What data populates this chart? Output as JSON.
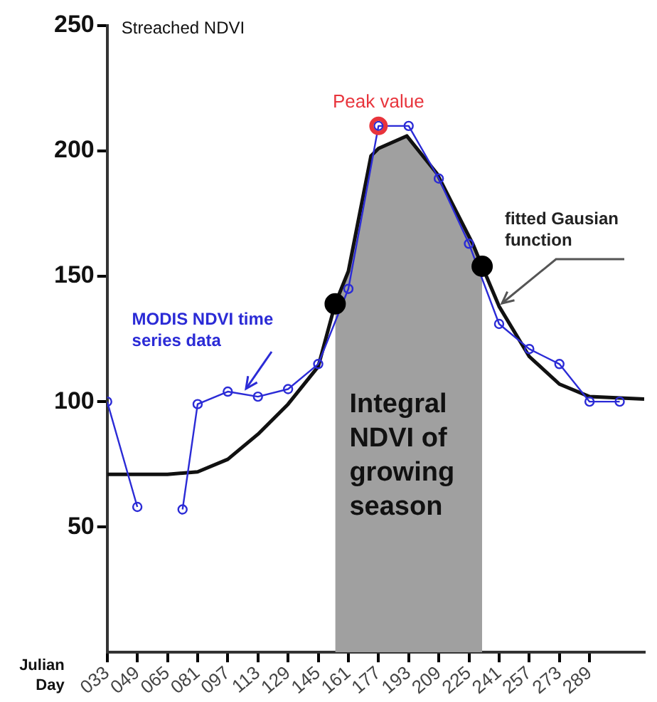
{
  "chart_data": {
    "type": "line",
    "ylabel": "Streached NDVI",
    "xlabel": "Julian Day",
    "xlim": [
      33,
      318
    ],
    "ylim": [
      0,
      250
    ],
    "xticks": [
      {
        "value": 33,
        "label": "033"
      },
      {
        "value": 49,
        "label": "049"
      },
      {
        "value": 65,
        "label": "065"
      },
      {
        "value": 81,
        "label": "081"
      },
      {
        "value": 97,
        "label": "097"
      },
      113,
      129,
      145,
      161,
      177,
      193,
      209,
      225,
      241,
      257,
      273,
      289
    ],
    "yticks": [
      50,
      100,
      150,
      200,
      250
    ],
    "grid": false,
    "series": [
      {
        "type": "area",
        "color": "#a0a0a0",
        "x": [
          154,
          161,
          167,
          173,
          177,
          192,
          208,
          227,
          232
        ],
        "values": [
          139,
          152,
          175,
          198,
          201,
          206,
          191,
          163,
          154
        ]
      },
      {
        "type": "line",
        "name": "fitted Gausian function",
        "color": "#111111",
        "marker": "none",
        "x": [
          33,
          49,
          65,
          81,
          97,
          113,
          129,
          145,
          154,
          161,
          167,
          173,
          177,
          192,
          208,
          227,
          232,
          241,
          257,
          273,
          289,
          318
        ],
        "values": [
          71,
          71,
          71,
          72,
          77,
          87,
          99,
          114,
          139,
          152,
          175,
          198,
          201,
          206,
          191,
          163,
          154,
          138,
          118,
          107,
          102,
          101
        ]
      },
      {
        "type": "line",
        "name": "MODIS NDVI time series data",
        "color": "#2b2bd6",
        "marker": "circle",
        "x": [
          33,
          49,
          65,
          73,
          81,
          97,
          113,
          129,
          145,
          161,
          177,
          193,
          209,
          225,
          241,
          257,
          273,
          289,
          305
        ],
        "values": [
          100,
          58,
          null,
          57,
          99,
          104,
          102,
          105,
          115,
          145,
          210,
          210,
          189,
          163,
          131,
          121,
          115,
          100,
          100
        ]
      },
      {
        "type": "scatter",
        "color": "#000000",
        "marker": "circle",
        "x": [
          154,
          232
        ],
        "values": [
          139,
          154
        ]
      },
      {
        "type": "scatter",
        "color": "#e8343c",
        "marker": "circle",
        "x": [
          177
        ],
        "values": [
          210
        ]
      }
    ],
    "annotations": [
      {
        "text": "Peak value",
        "x": 177,
        "y": 210
      },
      "Integral NDVI of growing season"
    ]
  }
}
